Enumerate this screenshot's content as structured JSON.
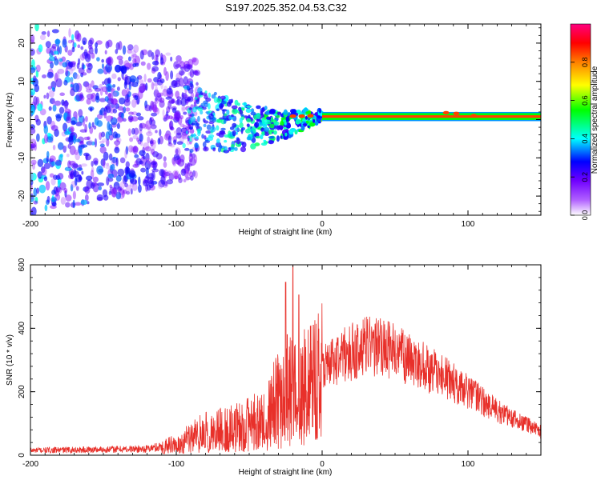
{
  "chart_data": [
    {
      "type": "heatmap",
      "title": "S197.2025.352.04.53.C32",
      "xlabel": "Height of straight line (km)",
      "ylabel": "Frequency (Hz)",
      "xlim": [
        -200,
        150
      ],
      "ylim": [
        -25,
        25
      ],
      "xticks": [
        -200,
        -100,
        0,
        100
      ],
      "xtick_labels": [
        "-200",
        "-100",
        "0",
        "100"
      ],
      "yticks": [
        -20,
        -10,
        0,
        10,
        20
      ],
      "ytick_labels": [
        "-20",
        "-10",
        "0",
        "10",
        "20"
      ],
      "colorbar": {
        "label": "Normalized spectral amplitude",
        "range": [
          0,
          1
        ],
        "ticks": [
          0.0,
          0.2,
          0.4,
          0.6,
          0.8
        ],
        "tick_labels": [
          "0.0",
          "0.2",
          "0.4",
          "0.6",
          "0.8"
        ],
        "colors": [
          "#ffffff",
          "#8000ff",
          "#0000ff",
          "#00ffff",
          "#00ff00",
          "#ffff00",
          "#ff8000",
          "#ff0000",
          "#ff0080"
        ]
      },
      "band": {
        "description": "narrow high-amplitude carrier band",
        "x_start": 0,
        "x_end": 150,
        "freq_center": 0.8,
        "freq_halfwidth": 1.2,
        "amplitude": 0.85
      },
      "noise_region": {
        "x_start": -200,
        "x_end": -95,
        "freq_span": [
          -25,
          25
        ],
        "amplitude": [
          0.05,
          0.45
        ]
      },
      "transition_region": {
        "x_start": -95,
        "x_end": 0,
        "amplitude": [
          0.2,
          0.6
        ]
      }
    },
    {
      "type": "line",
      "xlabel": "Height of straight line (km)",
      "ylabel": "SNR (10 * v/v)",
      "xlim": [
        -200,
        150
      ],
      "ylim": [
        0,
        600
      ],
      "xticks": [
        -200,
        -100,
        0,
        100
      ],
      "xtick_labels": [
        "-200",
        "-100",
        "0",
        "100"
      ],
      "yticks": [
        0,
        200,
        400,
        600
      ],
      "ytick_labels": [
        "0",
        "200",
        "400",
        "600"
      ],
      "color": "#e8302a",
      "envelope": {
        "x": [
          -200,
          -150,
          -120,
          -100,
          -80,
          -60,
          -40,
          -25,
          -18,
          -10,
          0,
          15,
          30,
          45,
          60,
          80,
          100,
          120,
          150
        ],
        "y": [
          15,
          18,
          20,
          35,
          75,
          85,
          120,
          200,
          230,
          240,
          280,
          315,
          345,
          335,
          300,
          255,
          200,
          140,
          75
        ]
      },
      "spikes": [
        {
          "x": -20,
          "y": 600
        },
        {
          "x": -25,
          "y": 545
        },
        {
          "x": -16,
          "y": 505
        },
        {
          "x": -24,
          "y": 380
        },
        {
          "x": -6,
          "y": 410
        }
      ]
    }
  ]
}
